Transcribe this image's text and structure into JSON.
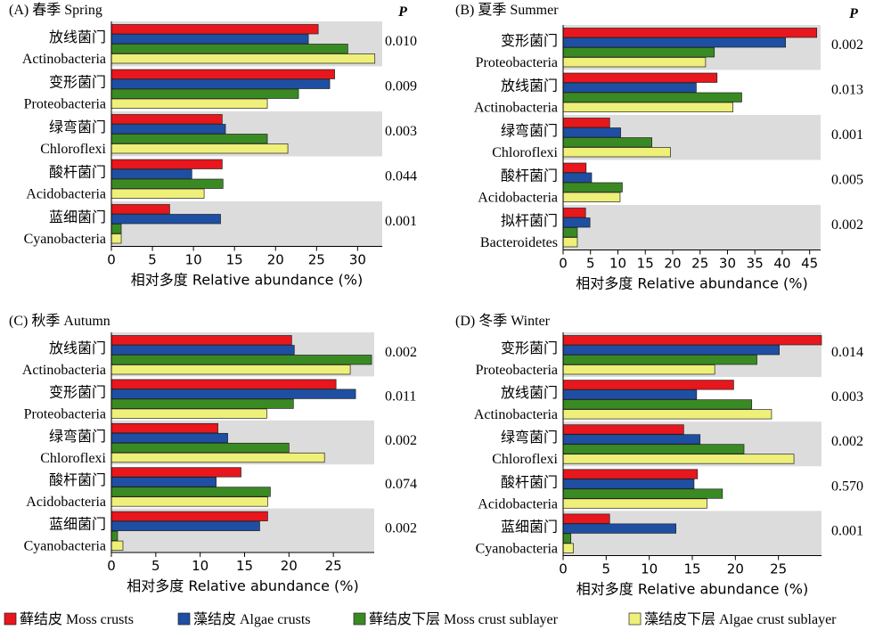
{
  "chart_data": [
    {
      "type": "bar",
      "orientation": "horizontal",
      "title": "(A) 春季 Spring",
      "p_header": "P",
      "xlabel": "相对多度 Relative abundance (%)",
      "xlim": [
        0,
        33
      ],
      "xticks": [
        0,
        5,
        10,
        15,
        20,
        25,
        30
      ],
      "categories": [
        {
          "cn": "放线菌门",
          "en": "Actinobacteria",
          "p": "0.010",
          "values": [
            25.2,
            24.0,
            28.8,
            32.1
          ]
        },
        {
          "cn": "变形菌门",
          "en": "Proteobacteria",
          "p": "0.009",
          "values": [
            27.2,
            26.6,
            22.8,
            19.0
          ]
        },
        {
          "cn": "绿弯菌门",
          "en": "Chloroflexi",
          "p": "0.003",
          "values": [
            13.5,
            13.9,
            19.0,
            21.5
          ]
        },
        {
          "cn": "酸杆菌门",
          "en": "Acidobacteria",
          "p": "0.044",
          "values": [
            13.5,
            9.8,
            13.6,
            11.3
          ]
        },
        {
          "cn": "蓝细菌门",
          "en": "Cyanobacteria",
          "p": "0.001",
          "values": [
            7.1,
            13.3,
            1.2,
            1.2
          ]
        }
      ]
    },
    {
      "type": "bar",
      "orientation": "horizontal",
      "title": "(B) 夏季 Summer",
      "p_header": "P",
      "xlabel": "相对多度 Relative abundance (%)",
      "xlim": [
        0,
        47
      ],
      "xticks": [
        0,
        5,
        10,
        15,
        20,
        25,
        30,
        35,
        40,
        45
      ],
      "categories": [
        {
          "cn": "变形菌门",
          "en": "Proteobacteria",
          "p": "0.002",
          "values": [
            46.3,
            40.6,
            27.6,
            26.0
          ]
        },
        {
          "cn": "放线菌门",
          "en": "Actinobacteria",
          "p": "0.013",
          "values": [
            28.1,
            24.3,
            32.6,
            31.0
          ]
        },
        {
          "cn": "绿弯菌门",
          "en": "Chloroflexi",
          "p": "0.001",
          "values": [
            8.5,
            10.5,
            16.2,
            19.6
          ]
        },
        {
          "cn": "酸杆菌门",
          "en": "Acidobacteria",
          "p": "0.005",
          "values": [
            4.2,
            5.2,
            10.8,
            10.4
          ]
        },
        {
          "cn": "拟杆菌门",
          "en": "Bacteroidetes",
          "p": "0.002",
          "values": [
            4.1,
            4.9,
            2.6,
            2.6
          ]
        }
      ]
    },
    {
      "type": "bar",
      "orientation": "horizontal",
      "title": "(C) 秋季 Autumn",
      "p_header": "",
      "xlabel": "相对多度 Relative abundance (%)",
      "xlim": [
        0,
        29.6
      ],
      "xticks": [
        0,
        5,
        10,
        15,
        20,
        25
      ],
      "categories": [
        {
          "cn": "放线菌门",
          "en": "Actinobacteria",
          "p": "0.002",
          "values": [
            20.3,
            20.6,
            29.3,
            26.9
          ]
        },
        {
          "cn": "变形菌门",
          "en": "Proteobacteria",
          "p": "0.011",
          "values": [
            25.3,
            27.5,
            20.5,
            17.5
          ]
        },
        {
          "cn": "绿弯菌门",
          "en": "Chloroflexi",
          "p": "0.002",
          "values": [
            12.0,
            13.1,
            20.0,
            24.0
          ]
        },
        {
          "cn": "酸杆菌门",
          "en": "Acidobacteria",
          "p": "0.074",
          "values": [
            14.6,
            11.8,
            17.9,
            17.6
          ]
        },
        {
          "cn": "蓝细菌门",
          "en": "Cyanobacteria",
          "p": "0.002",
          "values": [
            17.6,
            16.7,
            0.7,
            1.3
          ]
        }
      ]
    },
    {
      "type": "bar",
      "orientation": "horizontal",
      "title": "(D) 冬季 Winter",
      "p_header": "",
      "xlabel": "相对多度 Relative abundance (%)",
      "xlim": [
        0,
        30
      ],
      "xticks": [
        0,
        5,
        10,
        15,
        20,
        25
      ],
      "categories": [
        {
          "cn": "变形菌门",
          "en": "Proteobacteria",
          "p": "0.014",
          "values": [
            30.0,
            25.1,
            22.5,
            17.6
          ]
        },
        {
          "cn": "放线菌门",
          "en": "Actinobacteria",
          "p": "0.003",
          "values": [
            19.8,
            15.5,
            21.9,
            24.2
          ]
        },
        {
          "cn": "绿弯菌门",
          "en": "Chloroflexi",
          "p": "0.002",
          "values": [
            14.0,
            15.9,
            21.0,
            26.8
          ]
        },
        {
          "cn": "酸杆菌门",
          "en": "Acidobacteria",
          "p": "0.570",
          "values": [
            15.6,
            15.2,
            18.5,
            16.7
          ]
        },
        {
          "cn": "蓝细菌门",
          "en": "Cyanobacteria",
          "p": "0.001",
          "values": [
            5.4,
            13.1,
            0.9,
            1.2
          ]
        }
      ]
    }
  ],
  "legend": [
    {
      "label": "藓结皮 Moss crusts",
      "color": "#e8161d"
    },
    {
      "label": "藻结皮 Algae crusts",
      "color": "#1e4fa3"
    },
    {
      "label": "藓结皮下层 Moss crust sublayer",
      "color": "#3a8a24"
    },
    {
      "label": "藻结皮下层 Algae crust sublayer",
      "color": "#eef07a"
    }
  ],
  "colors": {
    "band": "#dcdcdc",
    "bar_outline": "#222222"
  }
}
